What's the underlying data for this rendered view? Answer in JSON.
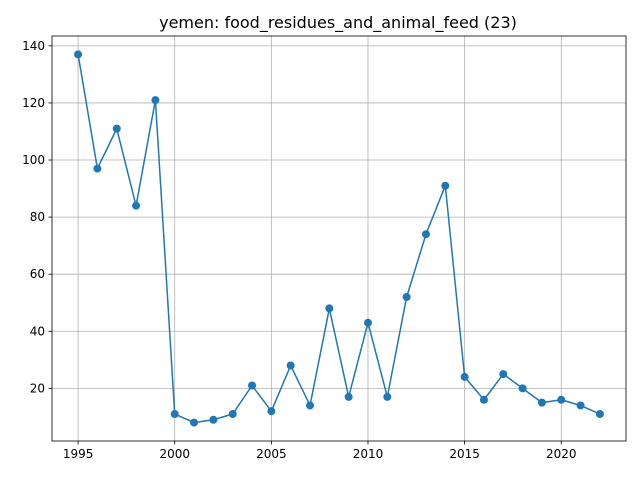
{
  "chart_data": {
    "type": "line",
    "title": "yemen: food_residues_and_animal_feed (23)",
    "xlabel": "",
    "ylabel": "",
    "x": [
      1995,
      1996,
      1997,
      1998,
      1999,
      2000,
      2001,
      2002,
      2003,
      2004,
      2005,
      2006,
      2007,
      2008,
      2009,
      2010,
      2011,
      2012,
      2013,
      2014,
      2015,
      2016,
      2017,
      2018,
      2019,
      2020,
      2021,
      2022
    ],
    "series": [
      {
        "values": [
          137,
          97,
          111,
          84,
          121,
          11,
          8,
          9,
          11,
          21,
          12,
          28,
          14,
          48,
          17,
          43,
          17,
          52,
          74,
          91,
          24,
          16,
          25,
          20,
          15,
          16,
          14,
          11
        ],
        "color": "#1f77b4",
        "marker": "circle"
      }
    ],
    "xticks": [
      1995,
      2000,
      2005,
      2010,
      2015,
      2020
    ],
    "yticks": [
      20,
      40,
      60,
      80,
      100,
      120,
      140
    ],
    "xlim": [
      1993.65,
      2023.35
    ],
    "ylim": [
      1.55,
      143.45
    ],
    "grid": true,
    "legend": "none"
  }
}
